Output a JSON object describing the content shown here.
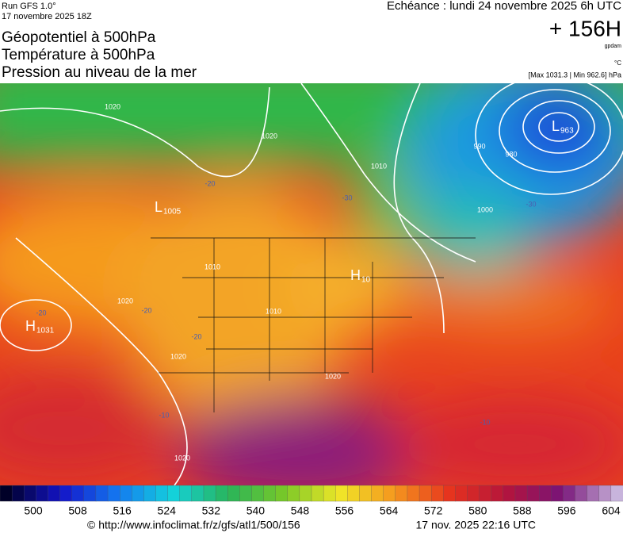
{
  "header": {
    "run": "Run GFS 1.0°",
    "run_date": "17 novembre 2025 18Z",
    "titles": [
      "Géopotentiel à 500hPa",
      "Température à 500hPa",
      "Pression au niveau de la mer"
    ],
    "echeance": "Echéance : lundi 24 novembre 2025 6h UTC",
    "lead": "+ 156H",
    "unit_geopotential": "gpdam",
    "unit_temperature": "°C",
    "extremes": "[Max 1031.3 | Min 962.6] hPa"
  },
  "map": {
    "pressure_centers": [
      {
        "symbol": "H",
        "value": "1031"
      },
      {
        "symbol": "L",
        "value": "1005"
      },
      {
        "symbol": "L",
        "value": "963"
      },
      {
        "symbol": "H",
        "value": "10"
      }
    ],
    "isobar_labels": [
      "1020",
      "1020",
      "1010",
      "1010",
      "1010",
      "1000",
      "990",
      "980",
      "1020",
      "1020",
      "1020",
      "1020"
    ],
    "temperature_labels": [
      "-20",
      "-30",
      "-30",
      "-20",
      "-20",
      "-10",
      "-10",
      "-20"
    ]
  },
  "colorbar": {
    "ticks": [
      500,
      508,
      516,
      524,
      532,
      540,
      548,
      556,
      564,
      572,
      580,
      588,
      596,
      604
    ]
  },
  "footer": {
    "url": "© http://www.infoclimat.fr/z/gfs/atl1/500/156",
    "timestamp": "17 nov. 2025 22:16 UTC"
  }
}
